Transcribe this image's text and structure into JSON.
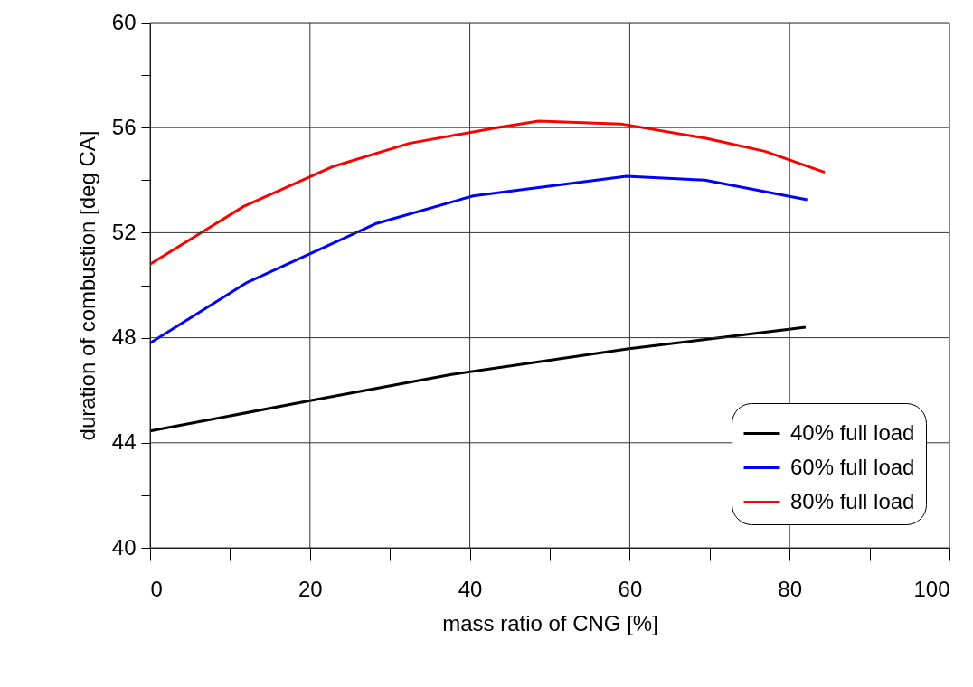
{
  "chart_data": {
    "type": "line",
    "xlabel": "mass ratio of CNG [%]",
    "ylabel": "duration of combustion [deg CA]",
    "xlim": [
      0,
      100
    ],
    "ylim": [
      40,
      60
    ],
    "xticks": [
      0,
      {
        "value": 10,
        "label": null
      },
      20,
      {
        "value": 30,
        "label": null
      },
      40,
      {
        "value": 50,
        "label": null
      },
      60,
      {
        "value": 70,
        "label": null
      },
      80,
      {
        "value": 90,
        "label": null
      },
      100
    ],
    "yticks": [
      40,
      {
        "value": 42,
        "label": null
      },
      44,
      {
        "value": 46,
        "label": null
      },
      48,
      {
        "value": 50,
        "label": null
      },
      52,
      {
        "value": 54,
        "label": null
      },
      56,
      {
        "value": 58,
        "label": null
      },
      60
    ],
    "grid": true,
    "legend": "bottom right",
    "line_style": "solid",
    "series": [
      {
        "name": "40% full load",
        "color": "#000000",
        "x": [
          0,
          20,
          37.7,
          59.9,
          69.7,
          82
        ],
        "values": [
          44.45,
          45.6,
          46.6,
          47.58,
          47.94,
          48.4
        ]
      },
      {
        "name": "60% full load",
        "color": "#0000ff",
        "x": [
          0,
          12.1,
          28.3,
          40.4,
          59.6,
          69.4,
          82.2
        ],
        "values": [
          47.8,
          50.1,
          52.35,
          53.4,
          54.15,
          54.0,
          53.25
        ]
      },
      {
        "name": "80% full load",
        "color": "#ff0000",
        "x": [
          0,
          11.7,
          22.7,
          32.4,
          43.4,
          48.6,
          58.9,
          69.4,
          76.9,
          84.4
        ],
        "values": [
          50.8,
          53.0,
          54.5,
          55.4,
          56.0,
          56.25,
          56.14,
          55.6,
          55.1,
          54.3
        ]
      }
    ]
  }
}
